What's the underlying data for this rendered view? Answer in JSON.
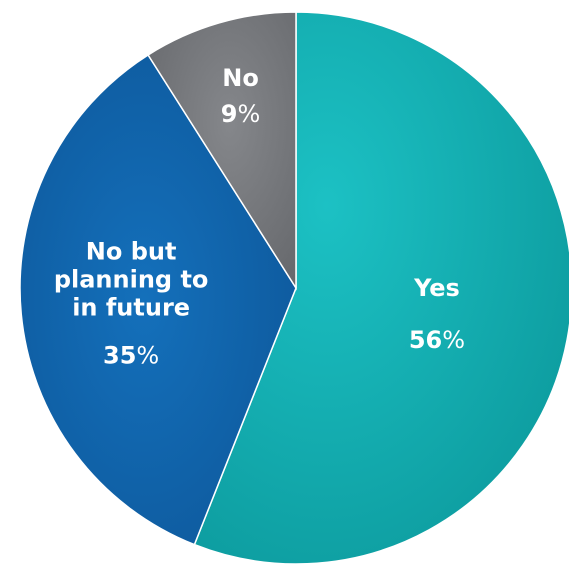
{
  "chart_data": {
    "type": "pie",
    "slices": [
      {
        "label": [
          "Yes"
        ],
        "value": 56,
        "value_text": "56",
        "unit": "%",
        "color": "#0ea5a8"
      },
      {
        "label": [
          "No but",
          "planning to",
          "in future"
        ],
        "value": 35,
        "value_text": "35",
        "unit": "%",
        "color": "#0d5fa6"
      },
      {
        "label": [
          "No"
        ],
        "value": 9,
        "value_text": "9",
        "unit": "%",
        "color": "#727478"
      }
    ],
    "start_angle_deg": 0,
    "direction": "clockwise"
  }
}
